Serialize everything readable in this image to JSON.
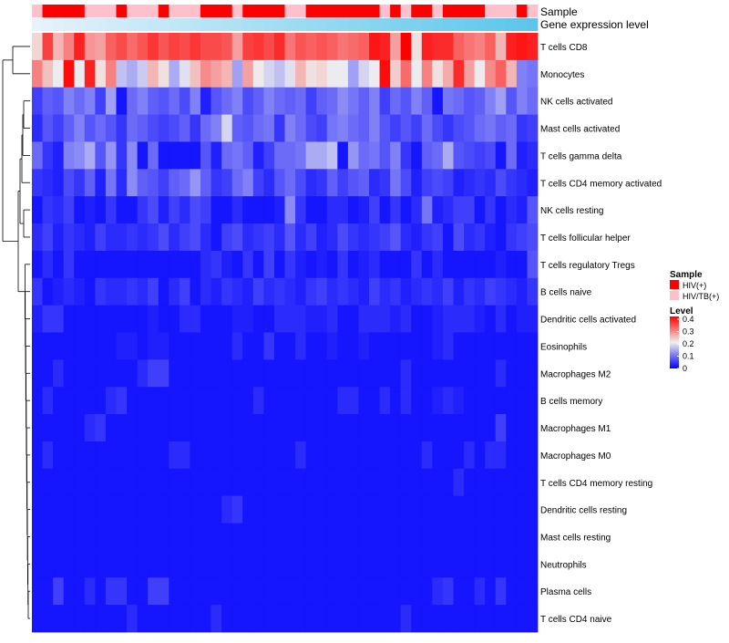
{
  "chart_data": {
    "type": "heatmap",
    "annotations": {
      "sample_label": "Sample",
      "expression_label": "Gene expression level",
      "sample_groups": [
        "HIV/TB(+)",
        "HIV(+)",
        "HIV(+)",
        "HIV(+)",
        "HIV(+)",
        "HIV/TB(+)",
        "HIV/TB(+)",
        "HIV/TB(+)",
        "HIV(+)",
        "HIV/TB(+)",
        "HIV/TB(+)",
        "HIV/TB(+)",
        "HIV(+)",
        "HIV/TB(+)",
        "HIV/TB(+)",
        "HIV/TB(+)",
        "HIV(+)",
        "HIV(+)",
        "HIV(+)",
        "HIV/TB(+)",
        "HIV(+)",
        "HIV(+)",
        "HIV(+)",
        "HIV(+)",
        "HIV/TB(+)",
        "HIV/TB(+)",
        "HIV(+)",
        "HIV(+)",
        "HIV(+)",
        "HIV(+)",
        "HIV(+)",
        "HIV(+)",
        "HIV(+)",
        "HIV/TB(+)",
        "HIV(+)",
        "HIV/TB(+)",
        "HIV(+)",
        "HIV(+)",
        "HIV/TB(+)",
        "HIV(+)",
        "HIV(+)",
        "HIV(+)",
        "HIV(+)",
        "HIV/TB(+)",
        "HIV/TB(+)",
        "HIV/TB(+)",
        "HIV(+)",
        "HIV/TB(+)"
      ]
    },
    "legends": {
      "sample": {
        "title": "Sample",
        "entries": [
          {
            "label": "HIV(+)",
            "color": "#ff0000"
          },
          {
            "label": "HIV/TB(+)",
            "color": "#ffc0cb"
          }
        ]
      },
      "level": {
        "title": "Level",
        "ticks": [
          "0.4",
          "0.3",
          "0.2",
          "0.1",
          "0"
        ]
      }
    },
    "colors": {
      "low": "#0000ff",
      "mid": "#f0f0f0",
      "high": "#ff0000",
      "expr_start": "#e6f3fb",
      "expr_end": "#5bc6ea"
    },
    "scale": {
      "min": 0,
      "max": 0.45
    },
    "rows": [
      "T cells CD8",
      "Monocytes",
      "NK cells activated",
      "Mast cells activated",
      "T cells gamma delta",
      "T cells CD4 memory activated",
      "NK cells resting",
      "T cells follicular helper",
      "T cells regulatory  Tregs",
      "B cells naive",
      "Dendritic cells activated",
      "Eosinophils",
      "Macrophages M2",
      "B cells memory",
      "Macrophages M1",
      "Macrophages M0",
      "T cells CD4 memory resting",
      "Dendritic cells resting",
      "Mast cells resting",
      "Neutrophils",
      "Plasma cells",
      "T cells CD4 naive"
    ],
    "values": [
      [
        0.25,
        0.39,
        0.28,
        0.33,
        0.42,
        0.31,
        0.3,
        0.36,
        0.38,
        0.35,
        0.37,
        0.4,
        0.37,
        0.39,
        0.38,
        0.4,
        0.38,
        0.38,
        0.37,
        0.3,
        0.39,
        0.4,
        0.38,
        0.41,
        0.34,
        0.37,
        0.36,
        0.37,
        0.36,
        0.34,
        0.35,
        0.36,
        0.43,
        0.42,
        0.3,
        0.45,
        0.24,
        0.42,
        0.41,
        0.41,
        0.36,
        0.34,
        0.33,
        0.36,
        0.28,
        0.42,
        0.43,
        0.42
      ],
      [
        0.33,
        0.27,
        0.22,
        0.44,
        0.22,
        0.42,
        0.24,
        0.33,
        0.18,
        0.16,
        0.19,
        0.28,
        0.24,
        0.16,
        0.21,
        0.27,
        0.32,
        0.3,
        0.28,
        0.15,
        0.3,
        0.23,
        0.2,
        0.18,
        0.21,
        0.28,
        0.24,
        0.25,
        0.22,
        0.22,
        0.15,
        0.2,
        0.22,
        0.44,
        0.26,
        0.35,
        0.22,
        0.33,
        0.24,
        0.29,
        0.41,
        0.3,
        0.22,
        0.32,
        0.36,
        0.28,
        0.12,
        0.11
      ],
      [
        0.06,
        0.09,
        0.08,
        0.12,
        0.1,
        0.12,
        0.06,
        0.15,
        0.02,
        0.1,
        0.12,
        0.09,
        0.08,
        0.1,
        0.07,
        0.12,
        0.03,
        0.08,
        0.1,
        0.12,
        0.07,
        0.09,
        0.12,
        0.1,
        0.09,
        0.1,
        0.06,
        0.09,
        0.1,
        0.13,
        0.11,
        0.09,
        0.12,
        0.06,
        0.1,
        0.08,
        0.12,
        0.09,
        0.02,
        0.11,
        0.1,
        0.08,
        0.09,
        0.12,
        0.15,
        0.08,
        0.12,
        0.1
      ],
      [
        0.04,
        0.08,
        0.06,
        0.09,
        0.12,
        0.08,
        0.1,
        0.08,
        0.05,
        0.1,
        0.09,
        0.07,
        0.06,
        0.07,
        0.09,
        0.05,
        0.1,
        0.12,
        0.2,
        0.09,
        0.08,
        0.1,
        0.11,
        0.05,
        0.12,
        0.1,
        0.07,
        0.06,
        0.11,
        0.12,
        0.1,
        0.09,
        0.12,
        0.08,
        0.06,
        0.08,
        0.06,
        0.1,
        0.07,
        0.05,
        0.07,
        0.08,
        0.1,
        0.11,
        0.09,
        0.1,
        0.05,
        0.06
      ],
      [
        0.1,
        0.05,
        0.03,
        0.12,
        0.13,
        0.16,
        0.08,
        0.14,
        0.05,
        0.13,
        0.02,
        0.1,
        0.02,
        0.02,
        0.02,
        0.02,
        0.08,
        0.03,
        0.1,
        0.11,
        0.09,
        0.03,
        0.06,
        0.1,
        0.1,
        0.11,
        0.16,
        0.16,
        0.18,
        0.02,
        0.14,
        0.1,
        0.11,
        0.08,
        0.12,
        0.05,
        0.02,
        0.09,
        0.1,
        0.16,
        0.08,
        0.07,
        0.06,
        0.07,
        0.02,
        0.1,
        0.03,
        0.04
      ],
      [
        0.05,
        0.04,
        0.03,
        0.07,
        0.05,
        0.09,
        0.03,
        0.11,
        0.04,
        0.13,
        0.09,
        0.08,
        0.06,
        0.09,
        0.1,
        0.14,
        0.09,
        0.05,
        0.06,
        0.1,
        0.12,
        0.06,
        0.04,
        0.08,
        0.1,
        0.07,
        0.04,
        0.05,
        0.09,
        0.06,
        0.08,
        0.09,
        0.04,
        0.05,
        0.11,
        0.07,
        0.03,
        0.06,
        0.07,
        0.06,
        0.03,
        0.04,
        0.05,
        0.04,
        0.07,
        0.05,
        0.04,
        0.03
      ],
      [
        0.02,
        0.05,
        0.04,
        0.06,
        0.02,
        0.03,
        0.02,
        0.05,
        0.02,
        0.02,
        0.05,
        0.07,
        0.03,
        0.06,
        0.04,
        0.07,
        0.06,
        0.02,
        0.02,
        0.04,
        0.02,
        0.02,
        0.02,
        0.03,
        0.13,
        0.05,
        0.02,
        0.02,
        0.04,
        0.04,
        0.02,
        0.03,
        0.06,
        0.02,
        0.05,
        0.02,
        0.04,
        0.11,
        0.03,
        0.04,
        0.06,
        0.06,
        0.02,
        0.05,
        0.02,
        0.04,
        0.03,
        0.08
      ],
      [
        0.04,
        0.06,
        0.03,
        0.05,
        0.04,
        0.03,
        0.06,
        0.04,
        0.04,
        0.05,
        0.04,
        0.05,
        0.07,
        0.04,
        0.06,
        0.07,
        0.04,
        0.02,
        0.06,
        0.07,
        0.04,
        0.05,
        0.06,
        0.04,
        0.08,
        0.04,
        0.06,
        0.03,
        0.04,
        0.07,
        0.05,
        0.04,
        0.05,
        0.06,
        0.08,
        0.04,
        0.03,
        0.05,
        0.06,
        0.02,
        0.07,
        0.04,
        0.05,
        0.03,
        0.02,
        0.05,
        0.06,
        0.07
      ],
      [
        0.02,
        0.04,
        0.02,
        0.05,
        0.02,
        0.02,
        0.02,
        0.02,
        0.02,
        0.02,
        0.02,
        0.02,
        0.02,
        0.02,
        0.02,
        0.02,
        0.04,
        0.05,
        0.03,
        0.02,
        0.05,
        0.02,
        0.06,
        0.02,
        0.05,
        0.03,
        0.02,
        0.03,
        0.02,
        0.05,
        0.02,
        0.03,
        0.04,
        0.02,
        0.02,
        0.02,
        0.05,
        0.02,
        0.04,
        0.02,
        0.02,
        0.02,
        0.02,
        0.02,
        0.03,
        0.02,
        0.02,
        0.08
      ],
      [
        0.05,
        0.02,
        0.03,
        0.04,
        0.03,
        0.02,
        0.05,
        0.04,
        0.04,
        0.05,
        0.04,
        0.06,
        0.02,
        0.04,
        0.06,
        0.02,
        0.04,
        0.03,
        0.05,
        0.04,
        0.03,
        0.06,
        0.04,
        0.05,
        0.04,
        0.03,
        0.05,
        0.06,
        0.04,
        0.05,
        0.04,
        0.03,
        0.06,
        0.04,
        0.05,
        0.03,
        0.04,
        0.05,
        0.04,
        0.06,
        0.03,
        0.05,
        0.04,
        0.06,
        0.05,
        0.04,
        0.03,
        0.05
      ],
      [
        0.03,
        0.05,
        0.05,
        0.02,
        0.02,
        0.02,
        0.02,
        0.02,
        0.02,
        0.02,
        0.02,
        0.03,
        0.02,
        0.02,
        0.04,
        0.04,
        0.02,
        0.02,
        0.02,
        0.03,
        0.03,
        0.02,
        0.02,
        0.04,
        0.04,
        0.04,
        0.03,
        0.03,
        0.04,
        0.02,
        0.02,
        0.04,
        0.04,
        0.04,
        0.03,
        0.04,
        0.02,
        0.02,
        0.03,
        0.04,
        0.04,
        0.04,
        0.03,
        0.02,
        0.04,
        0.02,
        0.03,
        0.03
      ],
      [
        0.02,
        0.02,
        0.02,
        0.02,
        0.02,
        0.02,
        0.02,
        0.02,
        0.03,
        0.03,
        0.02,
        0.03,
        0.03,
        0.02,
        0.02,
        0.02,
        0.02,
        0.02,
        0.02,
        0.04,
        0.02,
        0.02,
        0.05,
        0.02,
        0.02,
        0.04,
        0.02,
        0.02,
        0.03,
        0.02,
        0.02,
        0.03,
        0.02,
        0.02,
        0.02,
        0.02,
        0.02,
        0.02,
        0.03,
        0.04,
        0.02,
        0.02,
        0.02,
        0.02,
        0.02,
        0.02,
        0.02,
        0.02
      ],
      [
        0.02,
        0.02,
        0.04,
        0.02,
        0.02,
        0.02,
        0.02,
        0.02,
        0.02,
        0.02,
        0.04,
        0.06,
        0.06,
        0.02,
        0.02,
        0.02,
        0.02,
        0.02,
        0.02,
        0.02,
        0.02,
        0.02,
        0.02,
        0.02,
        0.02,
        0.02,
        0.02,
        0.02,
        0.02,
        0.02,
        0.02,
        0.02,
        0.02,
        0.02,
        0.02,
        0.04,
        0.02,
        0.02,
        0.02,
        0.02,
        0.02,
        0.02,
        0.02,
        0.02,
        0.04,
        0.02,
        0.02,
        0.02
      ],
      [
        0.02,
        0.04,
        0.02,
        0.02,
        0.02,
        0.02,
        0.02,
        0.04,
        0.05,
        0.02,
        0.02,
        0.02,
        0.02,
        0.02,
        0.02,
        0.02,
        0.02,
        0.02,
        0.02,
        0.02,
        0.02,
        0.04,
        0.02,
        0.02,
        0.02,
        0.02,
        0.02,
        0.02,
        0.02,
        0.04,
        0.04,
        0.02,
        0.02,
        0.04,
        0.02,
        0.04,
        0.02,
        0.02,
        0.03,
        0.04,
        0.03,
        0.02,
        0.02,
        0.02,
        0.02,
        0.02,
        0.02,
        0.02
      ],
      [
        0.02,
        0.02,
        0.02,
        0.02,
        0.02,
        0.04,
        0.05,
        0.02,
        0.02,
        0.02,
        0.02,
        0.02,
        0.02,
        0.02,
        0.02,
        0.02,
        0.02,
        0.02,
        0.02,
        0.02,
        0.02,
        0.02,
        0.02,
        0.02,
        0.02,
        0.02,
        0.02,
        0.02,
        0.02,
        0.02,
        0.02,
        0.02,
        0.02,
        0.02,
        0.02,
        0.02,
        0.02,
        0.02,
        0.02,
        0.02,
        0.02,
        0.02,
        0.02,
        0.02,
        0.06,
        0.02,
        0.02,
        0.02
      ],
      [
        0.02,
        0.04,
        0.02,
        0.02,
        0.02,
        0.02,
        0.02,
        0.02,
        0.02,
        0.02,
        0.02,
        0.02,
        0.02,
        0.04,
        0.04,
        0.02,
        0.02,
        0.02,
        0.02,
        0.02,
        0.02,
        0.02,
        0.02,
        0.02,
        0.02,
        0.04,
        0.02,
        0.02,
        0.02,
        0.02,
        0.02,
        0.02,
        0.02,
        0.02,
        0.02,
        0.02,
        0.02,
        0.04,
        0.02,
        0.02,
        0.02,
        0.04,
        0.02,
        0.04,
        0.04,
        0.02,
        0.02,
        0.02
      ],
      [
        0.02,
        0.02,
        0.02,
        0.02,
        0.02,
        0.02,
        0.02,
        0.02,
        0.02,
        0.02,
        0.02,
        0.02,
        0.02,
        0.02,
        0.02,
        0.02,
        0.02,
        0.02,
        0.02,
        0.02,
        0.02,
        0.02,
        0.02,
        0.02,
        0.02,
        0.02,
        0.02,
        0.02,
        0.02,
        0.02,
        0.02,
        0.02,
        0.02,
        0.02,
        0.02,
        0.02,
        0.02,
        0.02,
        0.02,
        0.02,
        0.04,
        0.02,
        0.02,
        0.02,
        0.02,
        0.02,
        0.02,
        0.02
      ],
      [
        0.02,
        0.02,
        0.02,
        0.02,
        0.02,
        0.02,
        0.02,
        0.02,
        0.02,
        0.02,
        0.02,
        0.02,
        0.02,
        0.02,
        0.02,
        0.02,
        0.02,
        0.02,
        0.04,
        0.05,
        0.02,
        0.02,
        0.02,
        0.02,
        0.02,
        0.02,
        0.02,
        0.02,
        0.02,
        0.02,
        0.02,
        0.02,
        0.02,
        0.02,
        0.02,
        0.02,
        0.02,
        0.02,
        0.02,
        0.02,
        0.02,
        0.02,
        0.02,
        0.02,
        0.02,
        0.02,
        0.02,
        0.02
      ],
      [
        0.02,
        0.02,
        0.02,
        0.02,
        0.02,
        0.02,
        0.02,
        0.02,
        0.02,
        0.02,
        0.02,
        0.02,
        0.02,
        0.02,
        0.02,
        0.02,
        0.02,
        0.02,
        0.02,
        0.02,
        0.02,
        0.02,
        0.02,
        0.02,
        0.02,
        0.02,
        0.02,
        0.02,
        0.02,
        0.02,
        0.02,
        0.02,
        0.02,
        0.02,
        0.02,
        0.02,
        0.02,
        0.02,
        0.02,
        0.02,
        0.02,
        0.02,
        0.02,
        0.02,
        0.02,
        0.02,
        0.02,
        0.02
      ],
      [
        0.02,
        0.02,
        0.02,
        0.02,
        0.02,
        0.02,
        0.02,
        0.02,
        0.02,
        0.02,
        0.02,
        0.02,
        0.02,
        0.02,
        0.02,
        0.02,
        0.02,
        0.02,
        0.02,
        0.02,
        0.02,
        0.02,
        0.02,
        0.02,
        0.02,
        0.02,
        0.02,
        0.02,
        0.02,
        0.02,
        0.02,
        0.02,
        0.02,
        0.02,
        0.02,
        0.02,
        0.02,
        0.02,
        0.02,
        0.02,
        0.02,
        0.02,
        0.02,
        0.02,
        0.02,
        0.02,
        0.02,
        0.02
      ],
      [
        0.02,
        0.02,
        0.06,
        0.02,
        0.02,
        0.04,
        0.02,
        0.05,
        0.05,
        0.02,
        0.02,
        0.06,
        0.06,
        0.02,
        0.02,
        0.02,
        0.02,
        0.02,
        0.02,
        0.02,
        0.02,
        0.02,
        0.02,
        0.02,
        0.02,
        0.02,
        0.02,
        0.02,
        0.02,
        0.02,
        0.02,
        0.02,
        0.02,
        0.02,
        0.02,
        0.02,
        0.02,
        0.02,
        0.04,
        0.05,
        0.02,
        0.02,
        0.04,
        0.02,
        0.05,
        0.02,
        0.02,
        0.02
      ],
      [
        0.02,
        0.02,
        0.02,
        0.02,
        0.02,
        0.02,
        0.02,
        0.02,
        0.02,
        0.04,
        0.02,
        0.02,
        0.02,
        0.02,
        0.02,
        0.02,
        0.02,
        0.04,
        0.02,
        0.02,
        0.02,
        0.02,
        0.02,
        0.02,
        0.02,
        0.02,
        0.02,
        0.02,
        0.02,
        0.02,
        0.02,
        0.02,
        0.02,
        0.02,
        0.02,
        0.04,
        0.02,
        0.02,
        0.02,
        0.02,
        0.02,
        0.02,
        0.02,
        0.02,
        0.02,
        0.02,
        0.02,
        0.02
      ]
    ]
  }
}
